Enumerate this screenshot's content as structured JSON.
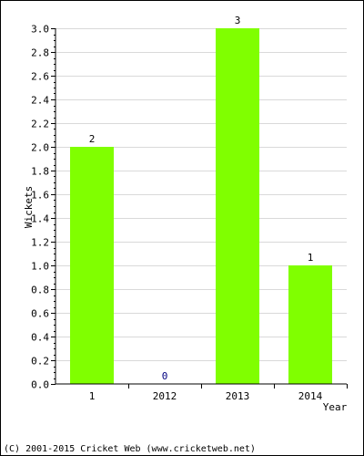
{
  "chart_data": {
    "type": "bar",
    "title": "",
    "xlabel": "Year",
    "ylabel": "Wickets",
    "categories": [
      "1",
      "2012",
      "2013",
      "2014"
    ],
    "values": [
      2,
      0,
      3,
      1
    ],
    "data_labels": [
      "2",
      "0",
      "3",
      "1"
    ],
    "ylim": [
      0,
      3.0
    ],
    "y_ticks": [
      0.0,
      0.2,
      0.4,
      0.6,
      0.8,
      1.0,
      1.2,
      1.4,
      1.6,
      1.8,
      2.0,
      2.2,
      2.4,
      2.6,
      2.8,
      3.0
    ],
    "y_tick_labels": [
      "0.0",
      "0.2",
      "0.4",
      "0.6",
      "0.8",
      "1.0",
      "1.2",
      "1.4",
      "1.6",
      "1.8",
      "2.0",
      "2.2",
      "2.4",
      "2.6",
      "2.8",
      "3.0"
    ],
    "grid": true,
    "bar_color": "#80ff00",
    "label_color": "#000080",
    "grid_color": "#d9d9d9"
  },
  "footer": "(C) 2001-2015 Cricket Web (www.cricketweb.net)"
}
